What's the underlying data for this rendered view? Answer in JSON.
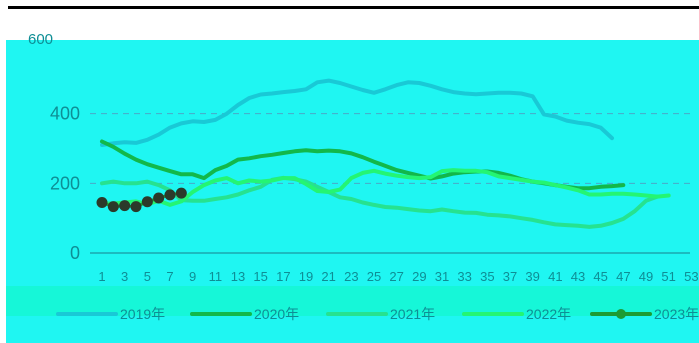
{
  "chart_data": {
    "type": "line",
    "title": "",
    "xlabel": "",
    "ylabel": "",
    "ylim": [
      0,
      600
    ],
    "yticks": [
      0,
      200,
      400,
      600
    ],
    "x_tick_labels": [
      "1",
      "3",
      "5",
      "7",
      "9",
      "11",
      "13",
      "15",
      "17",
      "19",
      "21",
      "23",
      "25",
      "27",
      "29",
      "31",
      "33",
      "35",
      "37",
      "39",
      "41",
      "43",
      "45",
      "47",
      "49",
      "51",
      "53"
    ],
    "grid": "horizontal dashed",
    "legend_position": "bottom",
    "series": [
      {
        "name": "2019年",
        "color": "#19c9d6",
        "values": [
          310,
          315,
          318,
          316,
          325,
          340,
          360,
          372,
          378,
          376,
          382,
          400,
          425,
          445,
          455,
          458,
          462,
          465,
          470,
          490,
          495,
          488,
          478,
          468,
          460,
          470,
          482,
          490,
          488,
          480,
          470,
          462,
          458,
          456,
          458,
          460,
          460,
          458,
          450,
          398,
          392,
          380,
          374,
          370,
          360,
          330
        ]
      },
      {
        "name": "2020年",
        "color": "#12b84a",
        "values": [
          320,
          305,
          285,
          268,
          255,
          245,
          235,
          226,
          226,
          215,
          238,
          250,
          268,
          272,
          278,
          282,
          287,
          292,
          295,
          292,
          294,
          292,
          286,
          275,
          262,
          250,
          238,
          230,
          222,
          214,
          220,
          228,
          232,
          234,
          234,
          230,
          222,
          212,
          205,
          200,
          195,
          190,
          186,
          186,
          190,
          192,
          195
        ]
      },
      {
        "name": "2021年",
        "color": "#26e290",
        "values": [
          200,
          205,
          200,
          200,
          205,
          195,
          180,
          152,
          150,
          150,
          155,
          160,
          168,
          180,
          190,
          210,
          216,
          212,
          205,
          190,
          175,
          160,
          155,
          145,
          138,
          132,
          130,
          126,
          122,
          120,
          125,
          120,
          116,
          115,
          110,
          108,
          105,
          100,
          95,
          88,
          82,
          80,
          78,
          75,
          78,
          86,
          98,
          120,
          150,
          162
        ]
      },
      {
        "name": "2022年",
        "color": "#24f573",
        "values": [
          142,
          142,
          145,
          148,
          140,
          150,
          138,
          148,
          175,
          195,
          208,
          215,
          200,
          208,
          205,
          208,
          215,
          215,
          198,
          178,
          175,
          182,
          215,
          230,
          236,
          228,
          222,
          218,
          215,
          218,
          235,
          238,
          236,
          236,
          232,
          220,
          215,
          210,
          205,
          202,
          195,
          188,
          180,
          168,
          168,
          170,
          170,
          168,
          165,
          162,
          165
        ]
      },
      {
        "name": "2023年",
        "color": "#1d9b34",
        "marker_color": "#2b3a2a",
        "values": [
          145,
          133,
          136,
          133,
          147,
          158,
          167,
          172
        ]
      }
    ]
  },
  "corner_label": "600",
  "legend": [
    "2019年",
    "2020年",
    "2021年",
    "2022年",
    "2023年"
  ]
}
